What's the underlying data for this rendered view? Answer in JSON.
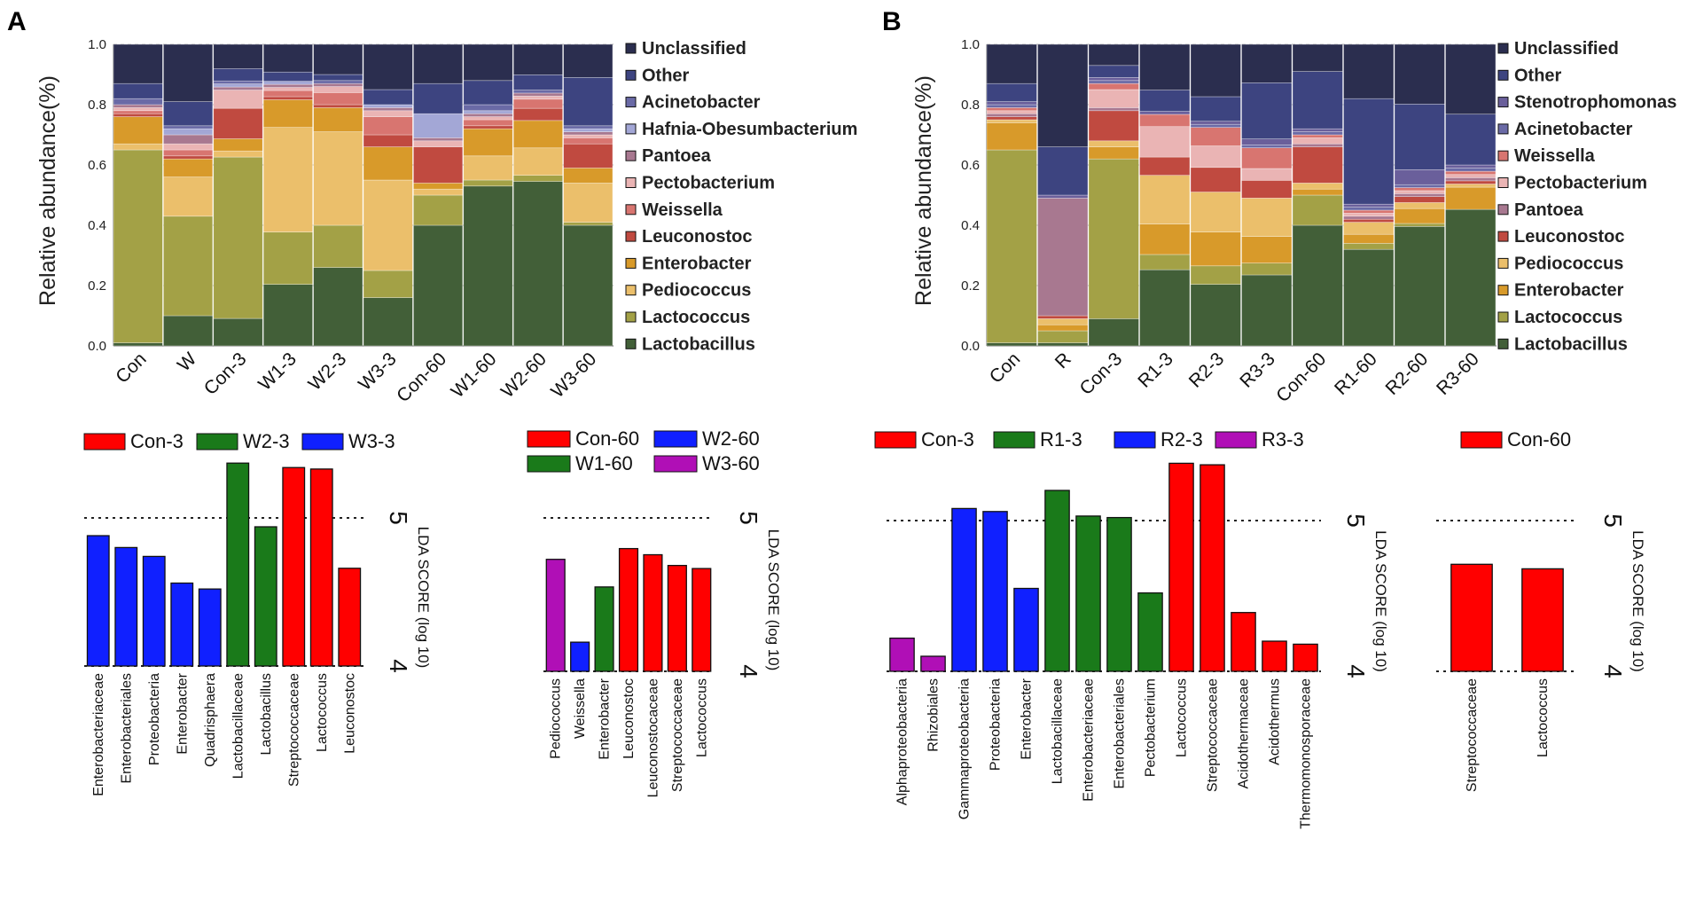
{
  "panels": {
    "a": {
      "label": "A",
      "stacked": {
        "ylabel": "Relative abundance(%)",
        "yticks": [
          "0.0",
          "0.2",
          "0.4",
          "0.6",
          "0.8",
          "1.0"
        ]
      }
    },
    "b": {
      "label": "B",
      "stacked": {
        "ylabel": "Relative abundance(%)",
        "yticks": [
          "0.0",
          "0.2",
          "0.4",
          "0.6",
          "0.8",
          "1.0"
        ]
      }
    }
  },
  "lda_axis": {
    "ylabel": "LDA SCORE (log 10)",
    "tick_high": "5",
    "tick_low": "4"
  },
  "colors": {
    "Unclassified": "#2b2e4f",
    "Other": "#3d4480",
    "Acinetobacter": "#6a6aa6",
    "Hafnia-Obesumbacterium": "#a3a7d6",
    "Stenotrophomonas": "#6a5f9b",
    "Pantoea": "#a87890",
    "Pectobacterium": "#eab4b4",
    "Weissella": "#d87570",
    "Leuconostoc": "#c04a40",
    "Enterobacter": "#d89a2a",
    "Pediococcus": "#ebbf6b",
    "Lactococcus": "#a3a146",
    "Lactobacillus": "#425f38",
    "lda_red": "#ff0000",
    "lda_green": "#1a7a1a",
    "lda_blue": "#1020ff",
    "lda_purple": "#b00fb6"
  },
  "chart_data": [
    {
      "id": "A-stacked",
      "type": "bar",
      "stacked": true,
      "title": "",
      "xlabel": "",
      "ylabel": "Relative abundance(%)",
      "ylim": [
        0,
        1
      ],
      "categories": [
        "Con",
        "W",
        "Con-3",
        "W1-3",
        "W2-3",
        "W3-3",
        "Con-60",
        "W1-60",
        "W2-60",
        "W3-60"
      ],
      "legend": [
        "Unclassified",
        "Other",
        "Acinetobacter",
        "Hafnia-Obesumbacterium",
        "Pantoea",
        "Pectobacterium",
        "Weissella",
        "Leuconostoc",
        "Enterobacter",
        "Pediococcus",
        "Lactococcus",
        "Lactobacillus"
      ],
      "series": [
        {
          "name": "Lactobacillus",
          "values": [
            0.01,
            0.1,
            0.09,
            0.2,
            0.26,
            0.16,
            0.4,
            0.53,
            0.54,
            0.4
          ]
        },
        {
          "name": "Lactococcus",
          "values": [
            0.64,
            0.33,
            0.53,
            0.17,
            0.14,
            0.09,
            0.1,
            0.02,
            0.02,
            0.01
          ]
        },
        {
          "name": "Pediococcus",
          "values": [
            0.02,
            0.13,
            0.02,
            0.34,
            0.31,
            0.3,
            0.02,
            0.08,
            0.09,
            0.13
          ]
        },
        {
          "name": "Enterobacter",
          "values": [
            0.09,
            0.06,
            0.04,
            0.09,
            0.08,
            0.11,
            0.02,
            0.09,
            0.09,
            0.05
          ]
        },
        {
          "name": "Leuconostoc",
          "values": [
            0.01,
            0.01,
            0.1,
            0.01,
            0.01,
            0.04,
            0.12,
            0.01,
            0.04,
            0.08
          ]
        },
        {
          "name": "Weissella",
          "values": [
            0.01,
            0.02,
            0.0,
            0.02,
            0.04,
            0.06,
            0.0,
            0.02,
            0.03,
            0.02
          ]
        },
        {
          "name": "Pectobacterium",
          "values": [
            0.01,
            0.02,
            0.06,
            0.01,
            0.02,
            0.02,
            0.02,
            0.01,
            0.01,
            0.01
          ]
        },
        {
          "name": "Pantoea",
          "values": [
            0.01,
            0.03,
            0.01,
            0.01,
            0.01,
            0.01,
            0.01,
            0.01,
            0.01,
            0.01
          ]
        },
        {
          "name": "Hafnia-Obesumbacterium",
          "values": [
            0.0,
            0.02,
            0.01,
            0.01,
            0.0,
            0.01,
            0.08,
            0.01,
            0.0,
            0.01
          ]
        },
        {
          "name": "Acinetobacter",
          "values": [
            0.02,
            0.01,
            0.01,
            0.0,
            0.01,
            0.0,
            0.0,
            0.02,
            0.01,
            0.01
          ]
        },
        {
          "name": "Other",
          "values": [
            0.05,
            0.08,
            0.04,
            0.03,
            0.02,
            0.05,
            0.1,
            0.08,
            0.05,
            0.16
          ]
        },
        {
          "name": "Unclassified",
          "values": [
            0.13,
            0.19,
            0.08,
            0.09,
            0.1,
            0.15,
            0.13,
            0.12,
            0.1,
            0.11
          ]
        }
      ]
    },
    {
      "id": "B-stacked",
      "type": "bar",
      "stacked": true,
      "title": "",
      "xlabel": "",
      "ylabel": "Relative abundance(%)",
      "ylim": [
        0,
        1
      ],
      "categories": [
        "Con",
        "R",
        "Con-3",
        "R1-3",
        "R2-3",
        "R3-3",
        "Con-60",
        "R1-60",
        "R2-60",
        "R3-60"
      ],
      "legend": [
        "Unclassified",
        "Other",
        "Stenotrophomonas",
        "Acinetobacter",
        "Weissella",
        "Pectobacterium",
        "Pantoea",
        "Leuconostoc",
        "Pediococcus",
        "Enterobacter",
        "Lactococcus",
        "Lactobacillus"
      ],
      "series": [
        {
          "name": "Lactobacillus",
          "values": [
            0.01,
            0.01,
            0.09,
            0.25,
            0.2,
            0.24,
            0.4,
            0.32,
            0.4,
            0.43
          ]
        },
        {
          "name": "Lactococcus",
          "values": [
            0.64,
            0.04,
            0.53,
            0.05,
            0.06,
            0.04,
            0.1,
            0.02,
            0.01,
            0.0
          ]
        },
        {
          "name": "Enterobacter",
          "values": [
            0.09,
            0.02,
            0.04,
            0.1,
            0.11,
            0.09,
            0.02,
            0.03,
            0.05,
            0.07
          ]
        },
        {
          "name": "Pediococcus",
          "values": [
            0.01,
            0.02,
            0.02,
            0.16,
            0.13,
            0.13,
            0.02,
            0.04,
            0.02,
            0.01
          ]
        },
        {
          "name": "Leuconostoc",
          "values": [
            0.01,
            0.01,
            0.1,
            0.06,
            0.08,
            0.06,
            0.12,
            0.01,
            0.02,
            0.01
          ]
        },
        {
          "name": "Pantoea",
          "values": [
            0.01,
            0.39,
            0.01,
            0.0,
            0.0,
            0.0,
            0.01,
            0.01,
            0.01,
            0.01
          ]
        },
        {
          "name": "Pectobacterium",
          "values": [
            0.01,
            0.0,
            0.06,
            0.1,
            0.07,
            0.04,
            0.02,
            0.01,
            0.01,
            0.01
          ]
        },
        {
          "name": "Weissella",
          "values": [
            0.01,
            0.0,
            0.02,
            0.04,
            0.06,
            0.07,
            0.01,
            0.01,
            0.01,
            0.01
          ]
        },
        {
          "name": "Acinetobacter",
          "values": [
            0.01,
            0.0,
            0.01,
            0.0,
            0.01,
            0.01,
            0.01,
            0.01,
            0.01,
            0.01
          ]
        },
        {
          "name": "Stenotrophomonas",
          "values": [
            0.01,
            0.01,
            0.01,
            0.01,
            0.01,
            0.02,
            0.01,
            0.01,
            0.05,
            0.01
          ]
        },
        {
          "name": "Other",
          "values": [
            0.06,
            0.16,
            0.04,
            0.07,
            0.08,
            0.19,
            0.19,
            0.35,
            0.22,
            0.16
          ]
        },
        {
          "name": "Unclassified",
          "values": [
            0.13,
            0.34,
            0.07,
            0.15,
            0.17,
            0.13,
            0.09,
            0.18,
            0.2,
            0.22
          ]
        }
      ]
    },
    {
      "id": "A-lda-3",
      "type": "bar",
      "title": "",
      "ylabel": "LDA SCORE (log 10)",
      "ylim": [
        4,
        5.35
      ],
      "legend": [
        {
          "name": "Con-3",
          "color": "lda_red"
        },
        {
          "name": "W2-3",
          "color": "lda_green"
        },
        {
          "name": "W3-3",
          "color": "lda_blue"
        }
      ],
      "categories": [
        "Enterobacteriaceae",
        "Enterobacteriales",
        "Proteobacteria",
        "Enterobacter",
        "Quadrisphaera",
        "Lactobacillaceae",
        "Lactobacillus",
        "Streptococcaceae",
        "Lactococcus",
        "Leuconostoc"
      ],
      "values": [
        4.88,
        4.8,
        4.74,
        4.56,
        4.52,
        5.37,
        4.94,
        5.34,
        5.33,
        4.66
      ],
      "groups": [
        "W3-3",
        "W3-3",
        "W3-3",
        "W3-3",
        "W3-3",
        "W2-3",
        "W2-3",
        "Con-3",
        "Con-3",
        "Con-3"
      ]
    },
    {
      "id": "A-lda-60",
      "type": "bar",
      "title": "",
      "ylabel": "LDA SCORE (log 10)",
      "ylim": [
        4,
        5.35
      ],
      "legend": [
        {
          "name": "Con-60",
          "color": "lda_red"
        },
        {
          "name": "W2-60",
          "color": "lda_blue"
        },
        {
          "name": "W1-60",
          "color": "lda_green"
        },
        {
          "name": "W3-60",
          "color": "lda_purple"
        }
      ],
      "categories": [
        "Pediococcus",
        "Weissella",
        "Enterobacter",
        "Leuconostoc",
        "Leuconostocaceae",
        "Streptococcaceae",
        "Lactococcus"
      ],
      "values": [
        4.73,
        4.19,
        4.55,
        4.8,
        4.76,
        4.69,
        4.67
      ],
      "groups": [
        "W3-60",
        "W2-60",
        "W1-60",
        "Con-60",
        "Con-60",
        "Con-60",
        "Con-60"
      ]
    },
    {
      "id": "B-lda-3",
      "type": "bar",
      "title": "",
      "ylabel": "LDA SCORE (log 10)",
      "ylim": [
        4,
        5.35
      ],
      "legend": [
        {
          "name": "Con-3",
          "color": "lda_red"
        },
        {
          "name": "R1-3",
          "color": "lda_green"
        },
        {
          "name": "R2-3",
          "color": "lda_blue"
        },
        {
          "name": "R3-3",
          "color": "lda_purple"
        }
      ],
      "categories": [
        "Alphaproteobacteria",
        "Rhizobiales",
        "Gammaproteobacteria",
        "Proteobacteria",
        "Enterobacter",
        "Lactobacillaceae",
        "Enterobacteriaceae",
        "Enterobacteriales",
        "Pectobacterium",
        "Lactococcus",
        "Streptococcaceae",
        "Acidothermaceae",
        "Acidothermus",
        "Thermomonosporaceae"
      ],
      "values": [
        4.22,
        4.1,
        5.08,
        5.06,
        4.55,
        5.2,
        5.03,
        5.02,
        4.52,
        5.38,
        5.37,
        4.39,
        4.2,
        4.18
      ],
      "groups": [
        "R3-3",
        "R3-3",
        "R2-3",
        "R2-3",
        "R2-3",
        "R1-3",
        "R1-3",
        "R1-3",
        "R1-3",
        "Con-3",
        "Con-3",
        "Con-3",
        "Con-3",
        "Con-3"
      ]
    },
    {
      "id": "B-lda-60",
      "type": "bar",
      "title": "",
      "ylabel": "LDA SCORE (log 10)",
      "ylim": [
        4,
        5.35
      ],
      "legend": [
        {
          "name": "Con-60",
          "color": "lda_red"
        }
      ],
      "categories": [
        "Streptococcaceae",
        "Lactococcus"
      ],
      "values": [
        4.71,
        4.68
      ],
      "groups": [
        "Con-60",
        "Con-60"
      ]
    }
  ]
}
